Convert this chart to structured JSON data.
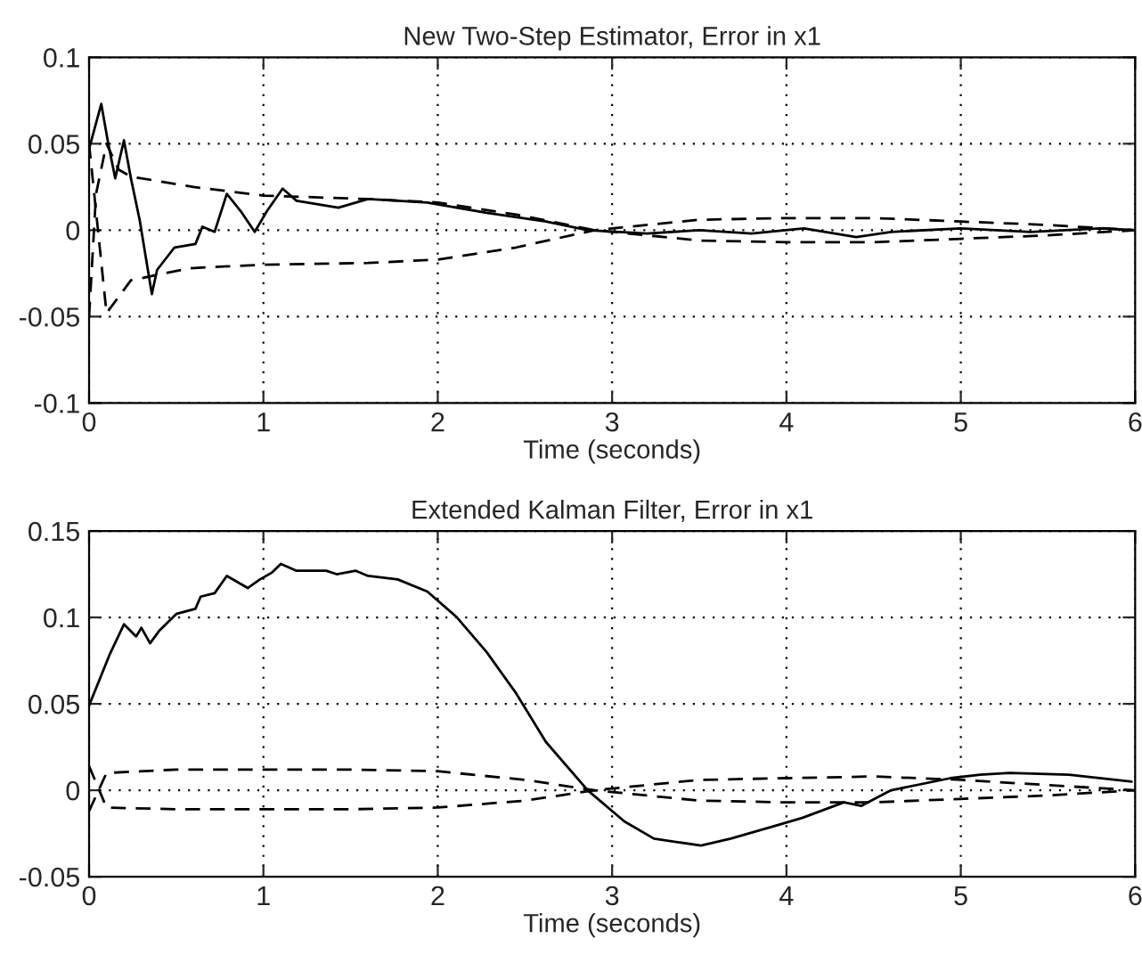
{
  "chart_data": [
    {
      "type": "line",
      "title": "New Two-Step Estimator, Error in x1",
      "xlabel": "Time (seconds)",
      "xlim": [
        0,
        6
      ],
      "xticks": [
        0,
        1,
        2,
        3,
        4,
        5,
        6
      ],
      "ylim": [
        -0.1,
        0.1
      ],
      "yticks": [
        -0.1,
        -0.05,
        0,
        0.05,
        0.1
      ],
      "grid": true,
      "series": [
        {
          "color": "#000000",
          "line_style": "solid",
          "x": [
            0,
            0.07,
            0.11,
            0.15,
            0.2,
            0.24,
            0.29,
            0.36,
            0.39,
            0.49,
            0.61,
            0.65,
            0.72,
            0.79,
            0.87,
            0.95,
            1.02,
            1.11,
            1.19,
            1.43,
            1.6,
            1.94,
            2.28,
            2.62,
            2.86,
            3.2,
            3.5,
            3.8,
            4.1,
            4.4,
            4.6,
            5.0,
            5.4,
            5.8,
            6.0
          ],
          "values": [
            0.047,
            0.073,
            0.05,
            0.03,
            0.052,
            0.03,
            0.006,
            -0.037,
            -0.023,
            -0.01,
            -0.008,
            0.002,
            -0.001,
            0.021,
            0.011,
            -0.001,
            0.011,
            0.024,
            0.017,
            0.013,
            0.018,
            0.016,
            0.01,
            0.005,
            0.0,
            -0.002,
            0.0,
            -0.002,
            0.001,
            -0.004,
            -0.001,
            0.001,
            -0.001,
            0.001,
            0.0
          ]
        },
        {
          "color": "#000000",
          "line_style": "dashed",
          "x": [
            0,
            0.04,
            0.1,
            0.17,
            0.24,
            0.6,
            1.0,
            1.6,
            2.0,
            2.45,
            2.9,
            3.5,
            4.0,
            4.5,
            5.0,
            5.5,
            6.0
          ],
          "values": [
            -0.05,
            0.021,
            0.05,
            0.035,
            0.031,
            0.025,
            0.02,
            0.018,
            0.016,
            0.009,
            0.0,
            -0.006,
            -0.007,
            -0.007,
            -0.005,
            -0.003,
            0.0
          ]
        },
        {
          "color": "#000000",
          "line_style": "dashed",
          "x": [
            0,
            0.1,
            0.24,
            0.58,
            0.99,
            1.6,
            2.0,
            2.45,
            2.9,
            3.5,
            4.0,
            4.5,
            5.0,
            5.5,
            6.0
          ],
          "values": [
            0.05,
            -0.048,
            -0.029,
            -0.022,
            -0.02,
            -0.019,
            -0.017,
            -0.01,
            0.0,
            0.006,
            0.007,
            0.007,
            0.005,
            0.003,
            0.0
          ]
        }
      ]
    },
    {
      "type": "line",
      "title": "Extended Kalman Filter, Error in x1",
      "xlabel": "Time (seconds)",
      "xlim": [
        0,
        6
      ],
      "xticks": [
        0,
        1,
        2,
        3,
        4,
        5,
        6
      ],
      "ylim": [
        -0.05,
        0.15
      ],
      "yticks": [
        -0.05,
        0,
        0.05,
        0.1,
        0.15
      ],
      "grid": true,
      "series": [
        {
          "color": "#000000",
          "line_style": "solid",
          "x": [
            0,
            0.12,
            0.2,
            0.27,
            0.3,
            0.35,
            0.4,
            0.5,
            0.61,
            0.64,
            0.72,
            0.79,
            0.91,
            0.98,
            1.05,
            1.1,
            1.19,
            1.36,
            1.42,
            1.53,
            1.6,
            1.77,
            1.94,
            2.11,
            2.28,
            2.45,
            2.62,
            2.86,
            3.07,
            3.24,
            3.51,
            3.68,
            3.92,
            4.09,
            4.33,
            4.43,
            4.6,
            4.94,
            5.11,
            5.28,
            5.62,
            5.98
          ],
          "values": [
            0.049,
            0.079,
            0.096,
            0.089,
            0.094,
            0.085,
            0.092,
            0.102,
            0.105,
            0.112,
            0.114,
            0.124,
            0.117,
            0.122,
            0.126,
            0.131,
            0.127,
            0.127,
            0.125,
            0.127,
            0.124,
            0.122,
            0.115,
            0.1,
            0.08,
            0.056,
            0.028,
            0.0,
            -0.018,
            -0.028,
            -0.032,
            -0.028,
            -0.021,
            -0.016,
            -0.007,
            -0.009,
            0.0,
            0.007,
            0.009,
            0.01,
            0.009,
            0.005
          ]
        },
        {
          "color": "#000000",
          "line_style": "dashed",
          "x": [
            0,
            0.1,
            0.5,
            1.0,
            1.5,
            2.0,
            2.5,
            2.9,
            3.5,
            4.0,
            4.5,
            5.0,
            5.5,
            6.0
          ],
          "values": [
            -0.012,
            0.01,
            0.012,
            0.012,
            0.012,
            0.011,
            0.006,
            0.0,
            -0.006,
            -0.007,
            -0.007,
            -0.005,
            -0.003,
            0.0
          ]
        },
        {
          "color": "#000000",
          "line_style": "dashed",
          "x": [
            0,
            0.1,
            0.5,
            1.0,
            1.5,
            2.0,
            2.5,
            2.9,
            3.5,
            4.0,
            4.5,
            5.0,
            5.5,
            6.0
          ],
          "values": [
            0.014,
            -0.01,
            -0.011,
            -0.011,
            -0.011,
            -0.01,
            -0.006,
            0.0,
            0.006,
            0.007,
            0.008,
            0.006,
            0.003,
            0.0
          ]
        }
      ]
    }
  ]
}
